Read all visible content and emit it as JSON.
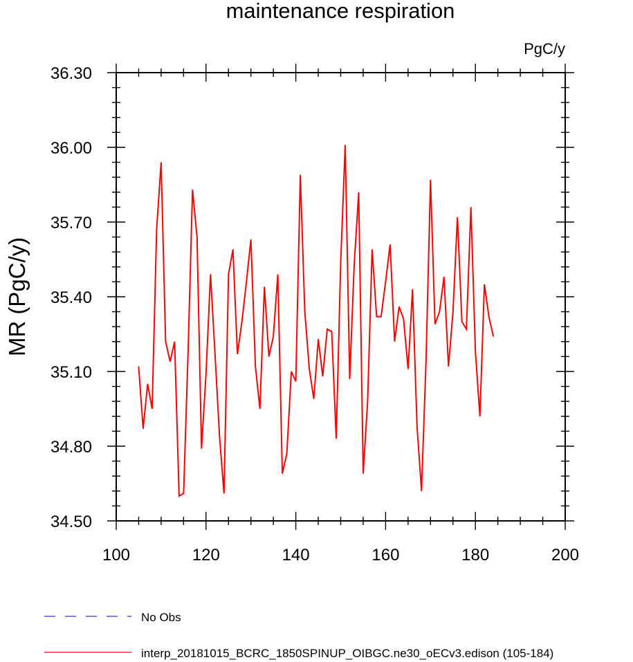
{
  "chart_data": {
    "type": "line",
    "title": "maintenance respiration",
    "units": "PgC/y",
    "xlabel": "",
    "ylabel": "MR  (PgC/y)",
    "xlim": [
      100,
      200
    ],
    "ylim": [
      34.5,
      36.3
    ],
    "xticks": [
      100,
      120,
      140,
      160,
      180,
      200
    ],
    "xtick_labels": [
      "100",
      "120",
      "140",
      "160",
      "180",
      "200"
    ],
    "yticks": [
      34.5,
      34.8,
      35.1,
      35.4,
      35.7,
      36.0,
      36.3
    ],
    "ytick_labels": [
      "34.50",
      "34.80",
      "35.10",
      "35.40",
      "35.70",
      "36.00",
      "36.30"
    ],
    "x_minor_step": 5,
    "y_minor_step": 0.06,
    "grid": false,
    "legend_position": "bottom-left",
    "legend": [
      {
        "label": "No Obs",
        "color": "#3333cc",
        "style": "dashed"
      },
      {
        "label": "interp_20181015_BCRC_1850SPINUP_OIBGC.ne30_oECv3.edison (105-184)",
        "color": "#ff0000",
        "style": "solid"
      }
    ],
    "series": [
      {
        "name": "interp_20181015_BCRC_1850SPINUP_OIBGC.ne30_oECv3.edison (105-184)",
        "color": "#ff0000",
        "x": [
          105,
          106,
          107,
          108,
          109,
          110,
          111,
          112,
          113,
          114,
          115,
          116,
          117,
          118,
          119,
          120,
          121,
          122,
          123,
          124,
          125,
          126,
          127,
          128,
          129,
          130,
          131,
          132,
          133,
          134,
          135,
          136,
          137,
          138,
          139,
          140,
          141,
          142,
          143,
          144,
          145,
          146,
          147,
          148,
          149,
          150,
          151,
          152,
          153,
          154,
          155,
          156,
          157,
          158,
          159,
          160,
          161,
          162,
          163,
          164,
          165,
          166,
          167,
          168,
          169,
          170,
          171,
          172,
          173,
          174,
          175,
          176,
          177,
          178,
          179,
          180,
          181,
          182,
          183,
          184
        ],
        "values": [
          35.12,
          34.87,
          35.05,
          34.95,
          35.67,
          35.94,
          35.22,
          35.14,
          35.22,
          34.6,
          34.61,
          35.17,
          35.83,
          35.64,
          34.79,
          35.09,
          35.49,
          35.17,
          34.84,
          34.61,
          35.49,
          35.59,
          35.17,
          35.3,
          35.46,
          35.63,
          35.12,
          34.95,
          35.44,
          35.16,
          35.24,
          35.49,
          34.69,
          34.77,
          35.1,
          35.06,
          35.89,
          35.34,
          35.11,
          34.99,
          35.23,
          35.08,
          35.27,
          35.26,
          34.83,
          35.54,
          36.01,
          35.07,
          35.53,
          35.82,
          34.69,
          34.98,
          35.59,
          35.32,
          35.32,
          35.46,
          35.61,
          35.22,
          35.36,
          35.31,
          35.11,
          35.43,
          34.88,
          34.62,
          35.14,
          35.87,
          35.29,
          35.34,
          35.48,
          35.12,
          35.34,
          35.72,
          35.3,
          35.27,
          35.76,
          35.18,
          34.92,
          35.45,
          35.32,
          35.24
        ]
      }
    ]
  }
}
